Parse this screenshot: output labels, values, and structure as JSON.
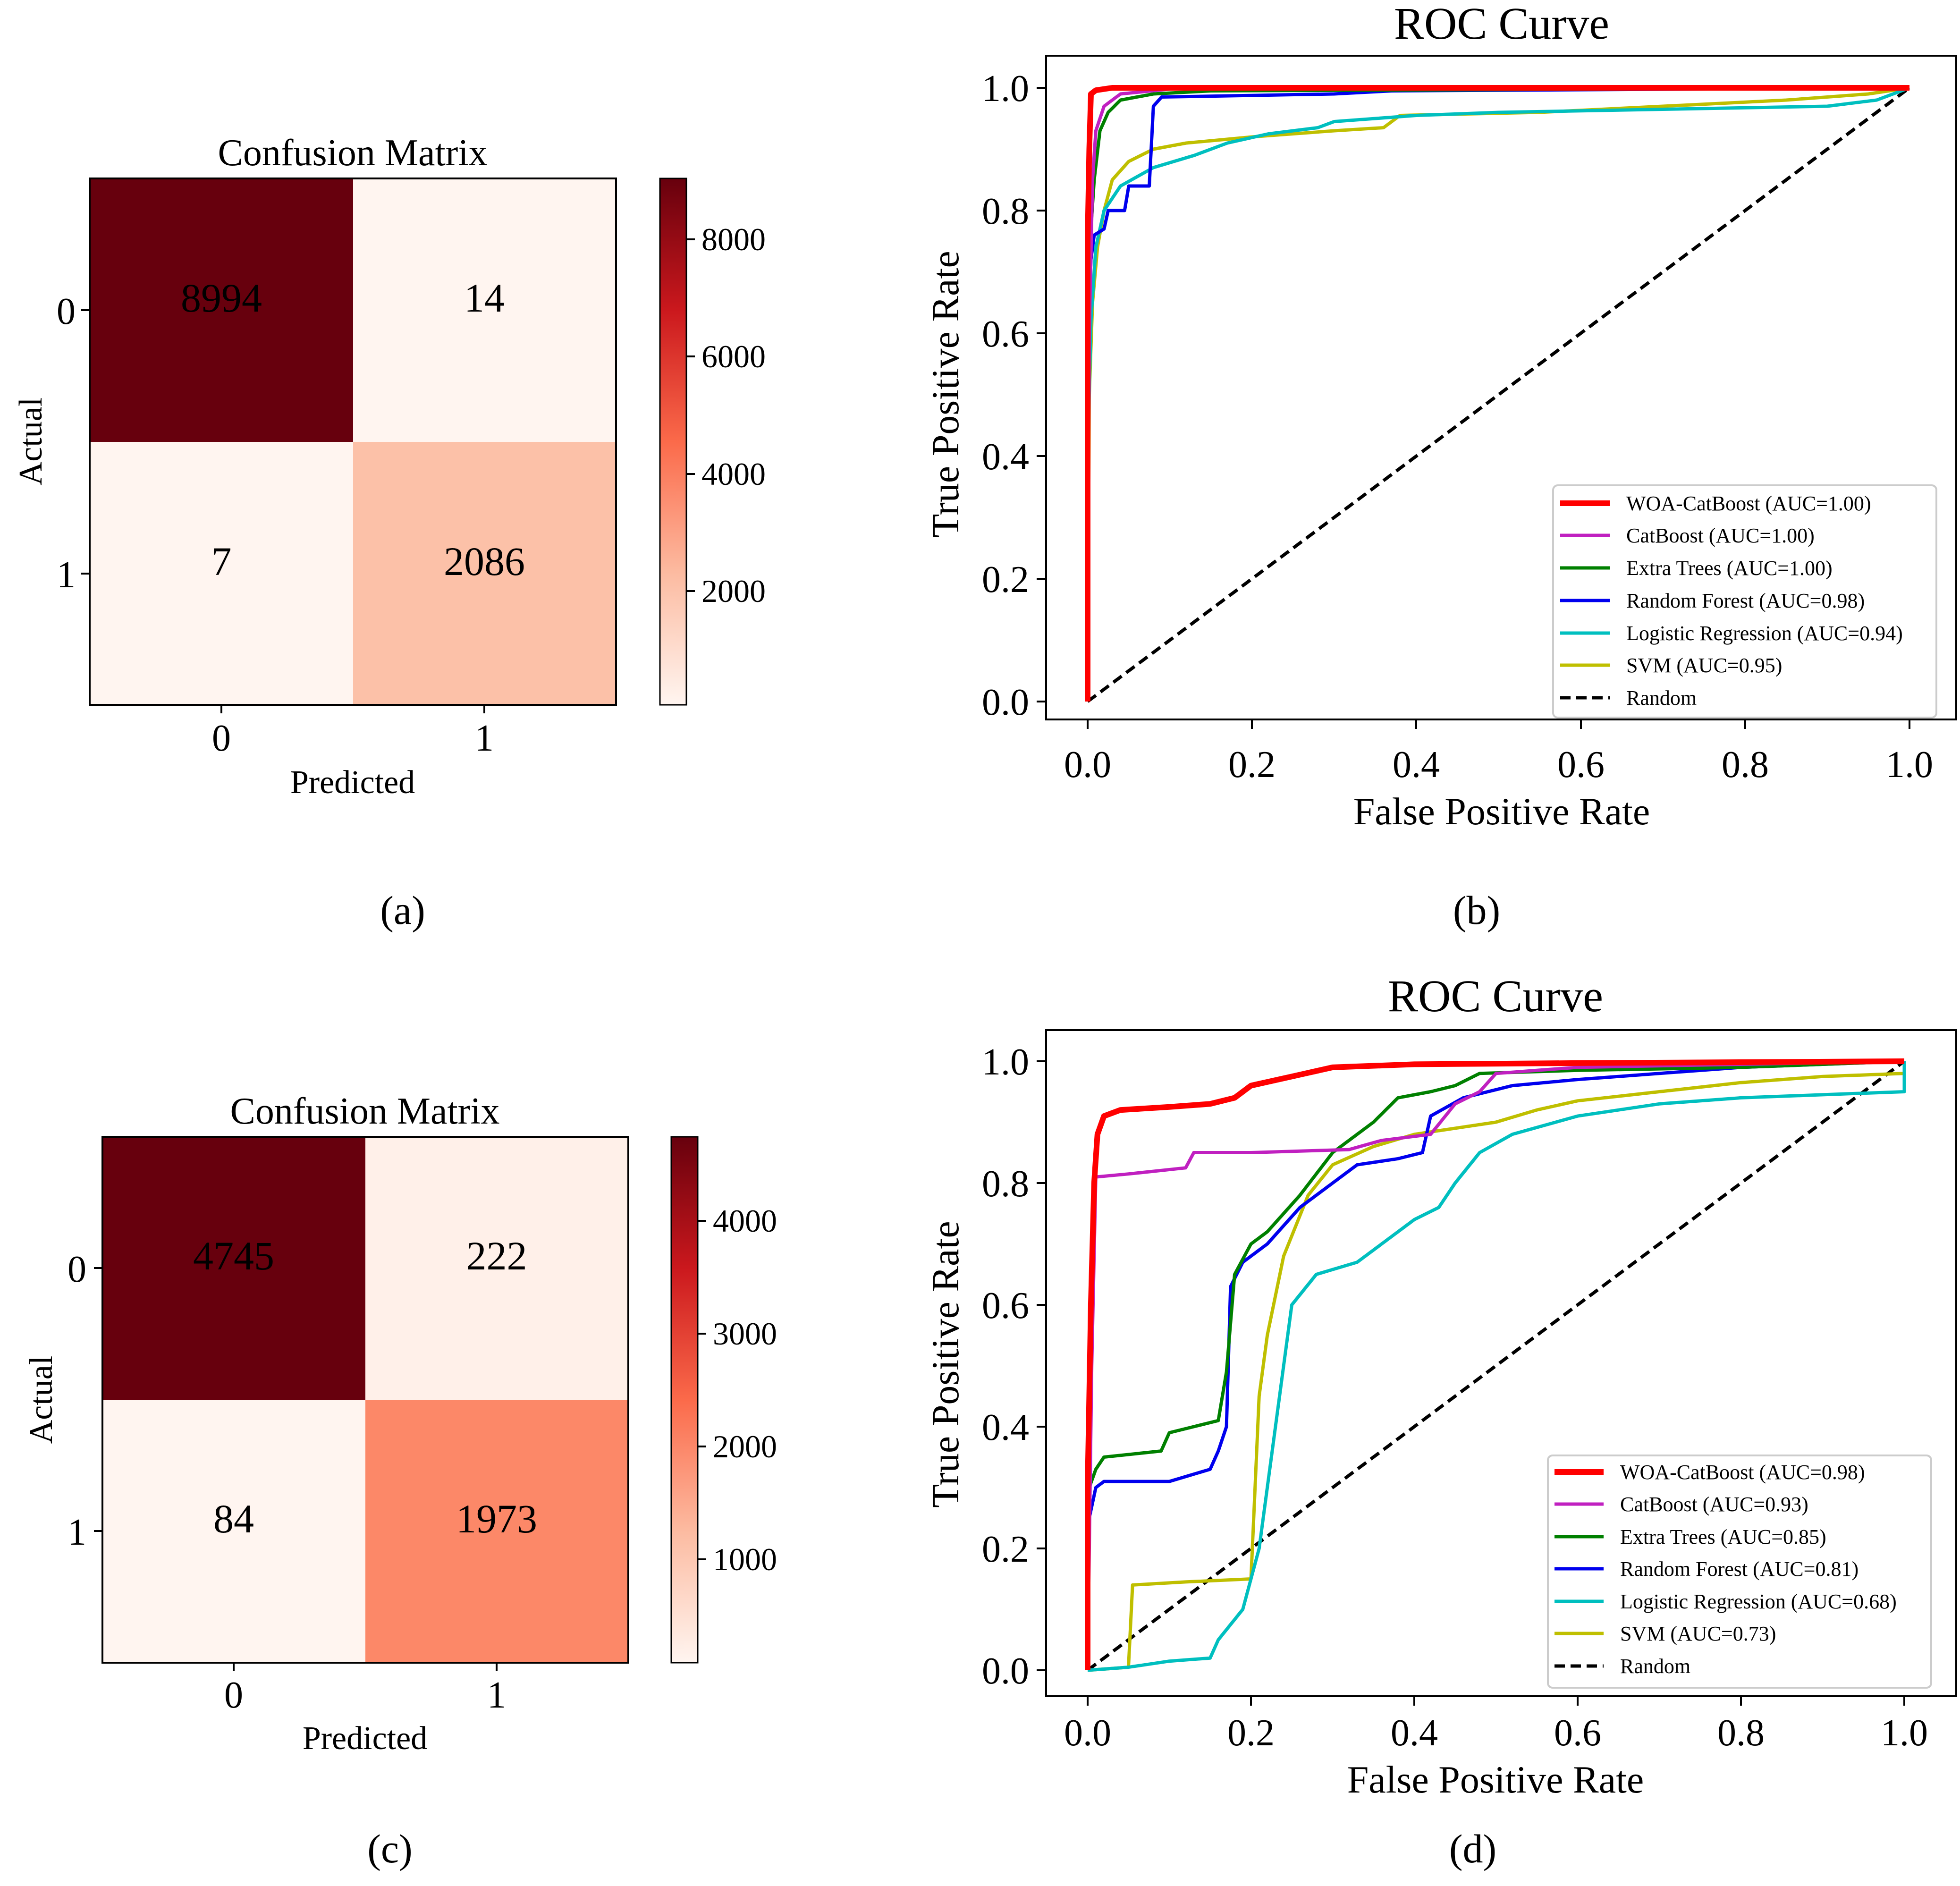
{
  "figure": {
    "panel_labels": [
      "(a)",
      "(b)",
      "(c)",
      "(d)"
    ]
  },
  "chart_data": [
    {
      "id": "a",
      "type": "heatmap",
      "title": "Confusion Matrix",
      "xlabel": "Predicted",
      "ylabel": "Actual",
      "row_labels": [
        "0",
        "1"
      ],
      "col_labels": [
        "0",
        "1"
      ],
      "values": [
        [
          8994,
          14
        ],
        [
          7,
          2086
        ]
      ],
      "colormap": "Reds",
      "colorbar_range": [
        7,
        8994
      ],
      "colorbar_ticks": [
        2000,
        4000,
        6000,
        8000
      ],
      "colors": {
        "max": "#67000d",
        "high_mid": "#f7b093",
        "low": "#fff1ea",
        "min": "#fff5f0"
      }
    },
    {
      "id": "b",
      "type": "line",
      "title": "ROC Curve",
      "xlabel": "False Positive Rate",
      "ylabel": "True Positive Rate",
      "xlim": [
        0.0,
        1.0
      ],
      "ylim": [
        0.0,
        1.0
      ],
      "xticks": [
        "0.0",
        "0.2",
        "0.4",
        "0.6",
        "0.8",
        "1.0"
      ],
      "yticks": [
        "0.0",
        "0.2",
        "0.4",
        "0.6",
        "0.8",
        "1.0"
      ],
      "legend_position": "lower-right",
      "series": [
        {
          "name": "WOA-CatBoost  (AUC=1.00)",
          "color": "#ff0000",
          "width": 12,
          "dash": false,
          "points": [
            [
              0,
              0
            ],
            [
              0,
              0.75
            ],
            [
              0.002,
              0.9
            ],
            [
              0.004,
              0.99
            ],
            [
              0.01,
              0.996
            ],
            [
              0.03,
              1.0
            ],
            [
              1,
              1.0
            ]
          ]
        },
        {
          "name": "CatBoost (AUC=1.00)",
          "color": "#c020c0",
          "width": 7,
          "dash": false,
          "points": [
            [
              0,
              0
            ],
            [
              0.002,
              0.6
            ],
            [
              0.006,
              0.85
            ],
            [
              0.01,
              0.93
            ],
            [
              0.02,
              0.97
            ],
            [
              0.04,
              0.99
            ],
            [
              0.1,
              0.998
            ],
            [
              1,
              1.0
            ]
          ]
        },
        {
          "name": "Extra Trees (AUC=1.00)",
          "color": "#008000",
          "width": 7,
          "dash": false,
          "points": [
            [
              0,
              0
            ],
            [
              0,
              0.5
            ],
            [
              0.003,
              0.75
            ],
            [
              0.008,
              0.85
            ],
            [
              0.015,
              0.93
            ],
            [
              0.025,
              0.96
            ],
            [
              0.04,
              0.98
            ],
            [
              0.08,
              0.99
            ],
            [
              0.15,
              0.995
            ],
            [
              1,
              1.0
            ]
          ]
        },
        {
          "name": "Random Forest (AUC=0.98)",
          "color": "#0000ee",
          "width": 7,
          "dash": false,
          "points": [
            [
              0,
              0
            ],
            [
              0,
              0.54
            ],
            [
              0.004,
              0.72
            ],
            [
              0.008,
              0.76
            ],
            [
              0.02,
              0.77
            ],
            [
              0.025,
              0.8
            ],
            [
              0.045,
              0.8
            ],
            [
              0.05,
              0.84
            ],
            [
              0.075,
              0.84
            ],
            [
              0.08,
              0.97
            ],
            [
              0.09,
              0.985
            ],
            [
              0.3,
              0.99
            ],
            [
              0.37,
              0.995
            ],
            [
              1,
              1.0
            ]
          ]
        },
        {
          "name": "Logistic Regression (AUC=0.94)",
          "color": "#00bfbf",
          "width": 7,
          "dash": false,
          "points": [
            [
              0,
              0
            ],
            [
              0.001,
              0.45
            ],
            [
              0.004,
              0.62
            ],
            [
              0.01,
              0.74
            ],
            [
              0.02,
              0.8
            ],
            [
              0.04,
              0.84
            ],
            [
              0.08,
              0.87
            ],
            [
              0.13,
              0.89
            ],
            [
              0.17,
              0.91
            ],
            [
              0.22,
              0.925
            ],
            [
              0.28,
              0.935
            ],
            [
              0.3,
              0.945
            ],
            [
              0.4,
              0.955
            ],
            [
              0.5,
              0.96
            ],
            [
              0.7,
              0.965
            ],
            [
              0.9,
              0.97
            ],
            [
              0.96,
              0.98
            ],
            [
              1,
              1.0
            ]
          ]
        },
        {
          "name": "SVM (AUC=0.95)",
          "color": "#bfbf00",
          "width": 7,
          "dash": false,
          "points": [
            [
              0,
              0
            ],
            [
              0.002,
              0.5
            ],
            [
              0.006,
              0.65
            ],
            [
              0.012,
              0.74
            ],
            [
              0.02,
              0.8
            ],
            [
              0.03,
              0.85
            ],
            [
              0.05,
              0.88
            ],
            [
              0.08,
              0.9
            ],
            [
              0.12,
              0.91
            ],
            [
              0.2,
              0.92
            ],
            [
              0.3,
              0.93
            ],
            [
              0.36,
              0.935
            ],
            [
              0.38,
              0.955
            ],
            [
              0.55,
              0.96
            ],
            [
              0.7,
              0.97
            ],
            [
              0.85,
              0.98
            ],
            [
              0.95,
              0.99
            ],
            [
              1,
              1.0
            ]
          ]
        },
        {
          "name": "Random",
          "color": "#000000",
          "width": 7,
          "dash": true,
          "points": [
            [
              0,
              0
            ],
            [
              1,
              1
            ]
          ]
        }
      ]
    },
    {
      "id": "c",
      "type": "heatmap",
      "title": "Confusion Matrix",
      "xlabel": "Predicted",
      "ylabel": "Actual",
      "row_labels": [
        "0",
        "1"
      ],
      "col_labels": [
        "0",
        "1"
      ],
      "values": [
        [
          4745,
          222
        ],
        [
          84,
          1973
        ]
      ],
      "colormap": "Reds",
      "colorbar_range": [
        84,
        4745
      ],
      "colorbar_ticks": [
        1000,
        2000,
        3000,
        4000
      ],
      "colors": {
        "max": "#67000d",
        "high_mid": "#fb8a6a",
        "low": "#fff0e8",
        "min": "#fff5f0"
      }
    },
    {
      "id": "d",
      "type": "line",
      "title": "ROC Curve",
      "xlabel": "False Positive Rate",
      "ylabel": "True Positive Rate",
      "xlim": [
        0.0,
        1.0
      ],
      "ylim": [
        0.0,
        1.0
      ],
      "xticks": [
        "0.0",
        "0.2",
        "0.4",
        "0.6",
        "0.8",
        "1.0"
      ],
      "yticks": [
        "0.0",
        "0.2",
        "0.4",
        "0.6",
        "0.8",
        "1.0"
      ],
      "legend_position": "lower-right",
      "series": [
        {
          "name": "WOA-CatBoost  (AUC=0.98)",
          "color": "#ff0000",
          "width": 12,
          "dash": false,
          "points": [
            [
              0,
              0
            ],
            [
              0,
              0.3
            ],
            [
              0.004,
              0.6
            ],
            [
              0.008,
              0.8
            ],
            [
              0.012,
              0.88
            ],
            [
              0.02,
              0.91
            ],
            [
              0.04,
              0.92
            ],
            [
              0.1,
              0.925
            ],
            [
              0.15,
              0.93
            ],
            [
              0.18,
              0.94
            ],
            [
              0.2,
              0.96
            ],
            [
              0.25,
              0.975
            ],
            [
              0.3,
              0.99
            ],
            [
              0.4,
              0.995
            ],
            [
              0.6,
              0.997
            ],
            [
              1,
              1.0
            ]
          ]
        },
        {
          "name": "CatBoost (AUC=0.93)",
          "color": "#c020c0",
          "width": 7,
          "dash": false,
          "points": [
            [
              0,
              0
            ],
            [
              0.005,
              0.5
            ],
            [
              0.01,
              0.81
            ],
            [
              0.05,
              0.815
            ],
            [
              0.12,
              0.825
            ],
            [
              0.13,
              0.85
            ],
            [
              0.2,
              0.85
            ],
            [
              0.32,
              0.855
            ],
            [
              0.36,
              0.87
            ],
            [
              0.42,
              0.88
            ],
            [
              0.45,
              0.93
            ],
            [
              0.48,
              0.95
            ],
            [
              0.5,
              0.98
            ],
            [
              0.55,
              0.985
            ],
            [
              0.6,
              0.99
            ],
            [
              1,
              1.0
            ]
          ]
        },
        {
          "name": "Extra Trees (AUC=0.85)",
          "color": "#008000",
          "width": 7,
          "dash": false,
          "points": [
            [
              0,
              0
            ],
            [
              0.002,
              0.3
            ],
            [
              0.01,
              0.33
            ],
            [
              0.02,
              0.35
            ],
            [
              0.09,
              0.36
            ],
            [
              0.1,
              0.39
            ],
            [
              0.13,
              0.4
            ],
            [
              0.16,
              0.41
            ],
            [
              0.17,
              0.49
            ],
            [
              0.18,
              0.65
            ],
            [
              0.2,
              0.7
            ],
            [
              0.22,
              0.72
            ],
            [
              0.26,
              0.78
            ],
            [
              0.3,
              0.85
            ],
            [
              0.35,
              0.9
            ],
            [
              0.38,
              0.94
            ],
            [
              0.42,
              0.95
            ],
            [
              0.45,
              0.96
            ],
            [
              0.48,
              0.98
            ],
            [
              0.6,
              0.985
            ],
            [
              0.8,
              0.99
            ],
            [
              1,
              1.0
            ]
          ]
        },
        {
          "name": "Random Forest (AUC=0.81)",
          "color": "#0000ee",
          "width": 7,
          "dash": false,
          "points": [
            [
              0,
              0
            ],
            [
              0.002,
              0.25
            ],
            [
              0.01,
              0.3
            ],
            [
              0.02,
              0.31
            ],
            [
              0.1,
              0.31
            ],
            [
              0.15,
              0.33
            ],
            [
              0.16,
              0.36
            ],
            [
              0.17,
              0.4
            ],
            [
              0.175,
              0.63
            ],
            [
              0.19,
              0.67
            ],
            [
              0.22,
              0.7
            ],
            [
              0.26,
              0.76
            ],
            [
              0.3,
              0.8
            ],
            [
              0.33,
              0.83
            ],
            [
              0.38,
              0.84
            ],
            [
              0.41,
              0.85
            ],
            [
              0.42,
              0.91
            ],
            [
              0.46,
              0.94
            ],
            [
              0.52,
              0.96
            ],
            [
              0.6,
              0.97
            ],
            [
              0.8,
              0.99
            ],
            [
              1,
              1.0
            ]
          ]
        },
        {
          "name": "Logistic Regression (AUC=0.68)",
          "color": "#00bfbf",
          "width": 7,
          "dash": false,
          "points": [
            [
              0,
              0
            ],
            [
              0.05,
              0.005
            ],
            [
              0.1,
              0.015
            ],
            [
              0.15,
              0.02
            ],
            [
              0.16,
              0.05
            ],
            [
              0.19,
              0.1
            ],
            [
              0.21,
              0.2
            ],
            [
              0.23,
              0.4
            ],
            [
              0.25,
              0.6
            ],
            [
              0.28,
              0.65
            ],
            [
              0.33,
              0.67
            ],
            [
              0.36,
              0.7
            ],
            [
              0.4,
              0.74
            ],
            [
              0.43,
              0.76
            ],
            [
              0.45,
              0.8
            ],
            [
              0.48,
              0.85
            ],
            [
              0.52,
              0.88
            ],
            [
              0.6,
              0.91
            ],
            [
              0.7,
              0.93
            ],
            [
              0.8,
              0.94
            ],
            [
              0.9,
              0.945
            ],
            [
              1,
              0.95
            ],
            [
              1,
              1.0
            ]
          ]
        },
        {
          "name": "SVM (AUC=0.73)",
          "color": "#bfbf00",
          "width": 7,
          "dash": false,
          "points": [
            [
              0,
              0
            ],
            [
              0.05,
              0.005
            ],
            [
              0.055,
              0.14
            ],
            [
              0.12,
              0.145
            ],
            [
              0.2,
              0.15
            ],
            [
              0.205,
              0.3
            ],
            [
              0.21,
              0.45
            ],
            [
              0.22,
              0.55
            ],
            [
              0.24,
              0.68
            ],
            [
              0.27,
              0.78
            ],
            [
              0.3,
              0.83
            ],
            [
              0.35,
              0.86
            ],
            [
              0.4,
              0.88
            ],
            [
              0.45,
              0.89
            ],
            [
              0.5,
              0.9
            ],
            [
              0.55,
              0.92
            ],
            [
              0.6,
              0.935
            ],
            [
              0.7,
              0.95
            ],
            [
              0.8,
              0.965
            ],
            [
              0.9,
              0.975
            ],
            [
              1,
              0.98
            ],
            [
              1,
              1.0
            ]
          ]
        },
        {
          "name": "Random",
          "color": "#000000",
          "width": 7,
          "dash": true,
          "points": [
            [
              0,
              0
            ],
            [
              1,
              1
            ]
          ]
        }
      ]
    }
  ]
}
